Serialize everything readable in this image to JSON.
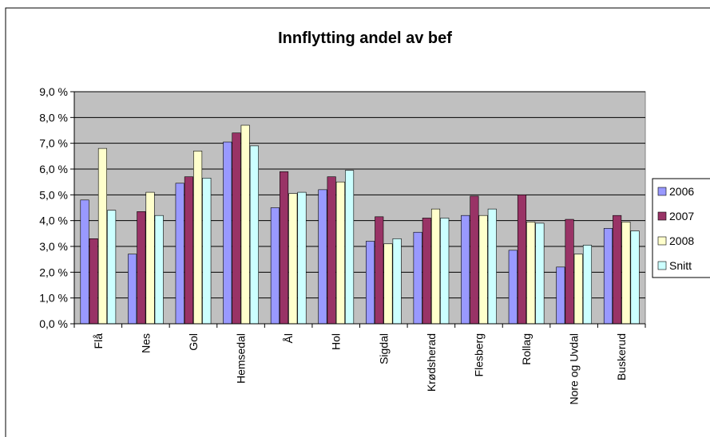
{
  "chart_data": {
    "type": "bar",
    "title": "Innflytting andel av bef",
    "categories": [
      "Flå",
      "Nes",
      "Gol",
      "Hemsedal",
      "Ål",
      "Hol",
      "Sigdal",
      "Krødsherad",
      "Flesberg",
      "Rollag",
      "Nore og Uvdal",
      "Buskerud"
    ],
    "series": [
      {
        "name": "2006",
        "color": "#9999ff",
        "values": [
          4.8,
          2.7,
          5.45,
          7.05,
          4.5,
          5.2,
          3.2,
          3.55,
          4.2,
          2.85,
          2.2,
          3.7
        ]
      },
      {
        "name": "2007",
        "color": "#993366",
        "values": [
          3.3,
          4.35,
          5.7,
          7.4,
          5.9,
          5.7,
          4.15,
          4.1,
          4.95,
          5.0,
          4.05,
          4.2
        ]
      },
      {
        "name": "2008",
        "color": "#ffffcc",
        "values": [
          6.8,
          5.1,
          6.7,
          7.7,
          5.05,
          5.5,
          3.1,
          4.45,
          4.2,
          3.95,
          2.7,
          3.95
        ]
      },
      {
        "name": "Snitt",
        "color": "#ccffff",
        "values": [
          4.4,
          4.2,
          5.65,
          6.9,
          5.1,
          5.95,
          3.3,
          4.1,
          4.45,
          3.9,
          3.05,
          3.6
        ]
      }
    ],
    "ylim": [
      0,
      9
    ],
    "yticks": [
      {
        "value": 0,
        "label": "0,0 %"
      },
      {
        "value": 1,
        "label": "1,0 %"
      },
      {
        "value": 2,
        "label": "2,0 %"
      },
      {
        "value": 3,
        "label": "3,0 %"
      },
      {
        "value": 4,
        "label": "4,0 %"
      },
      {
        "value": 5,
        "label": "5,0 %"
      },
      {
        "value": 6,
        "label": "6,0 %"
      },
      {
        "value": 7,
        "label": "7,0 %"
      },
      {
        "value": 8,
        "label": "8,0 %"
      },
      {
        "value": 9,
        "label": "9,0 %"
      }
    ],
    "grid": true,
    "legend": "right"
  }
}
